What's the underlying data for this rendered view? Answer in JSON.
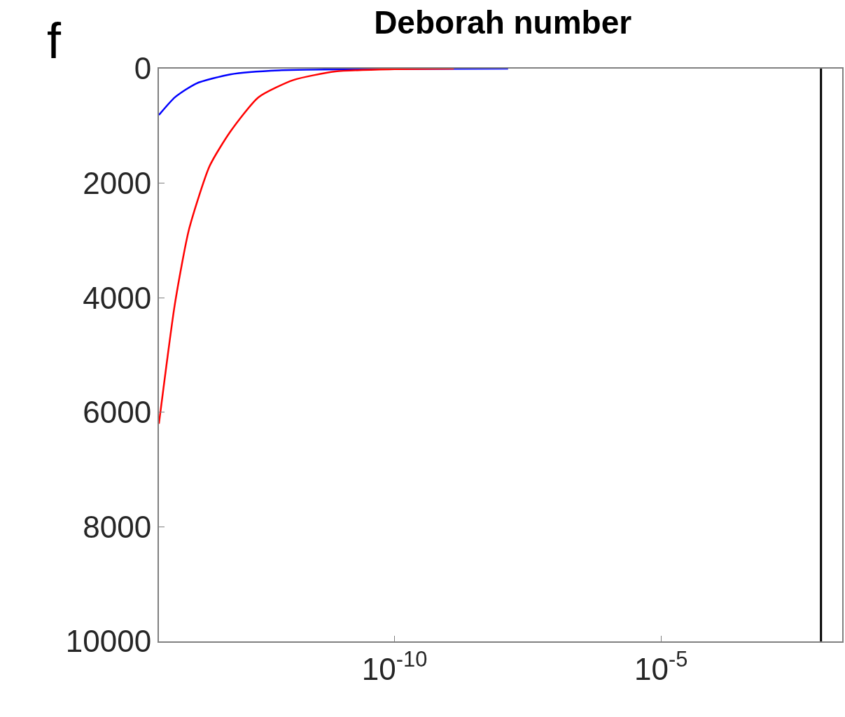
{
  "chart_data": {
    "type": "line",
    "title": "Deborah number",
    "annotations": [
      "f"
    ],
    "log": "x",
    "xlim": [
      3.8e-15,
      0.025
    ],
    "ylim": [
      10000,
      0
    ],
    "xticks": [
      {
        "value": 1e-10,
        "label": "10$^{-10}$"
      },
      {
        "value": 1e-05,
        "label": "10$^{-5}$"
      }
    ],
    "yticks": [
      0,
      2000,
      4000,
      6000,
      8000,
      10000
    ],
    "marker": "none",
    "line_style": "solid",
    "series": [
      {
        "color": "#0000ff",
        "x": [
          3.8e-15,
          7.6e-15,
          1.9e-14,
          8.3e-14,
          6.9e-13,
          1.35e-08
        ],
        "values": [
          810,
          500,
          260,
          100,
          30,
          0
        ]
      },
      {
        "color": "#ff0000",
        "x": [
          3.8e-15,
          7.6e-15,
          1.4e-14,
          3.4e-14,
          8.3e-14,
          2.8e-13,
          1.26e-12,
          7.8e-12,
          1e-10,
          1.3e-09
        ],
        "values": [
          6200,
          4100,
          2800,
          1700,
          1100,
          500,
          200,
          50,
          10,
          0
        ]
      }
    ],
    "ref_lines": [
      {
        "axis": "x",
        "value": 0.01,
        "label": null,
        "color": "#000000"
      }
    ]
  }
}
